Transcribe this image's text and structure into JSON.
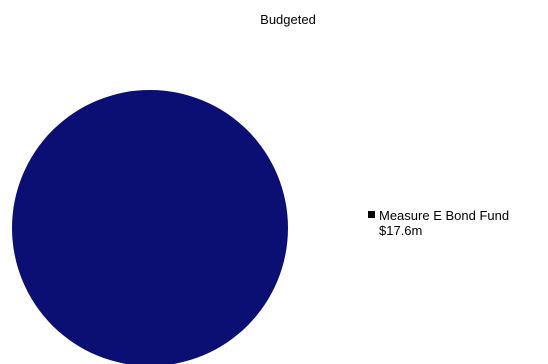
{
  "chart_data": {
    "type": "pie",
    "title": "Budgeted",
    "categories": [
      "Measure E Bond Fund"
    ],
    "values": [
      17.6
    ],
    "value_labels": [
      "$17.6m"
    ],
    "colors": [
      "#0b0f73"
    ],
    "legend_marker_color": "#000000",
    "legend_placement": "right"
  }
}
